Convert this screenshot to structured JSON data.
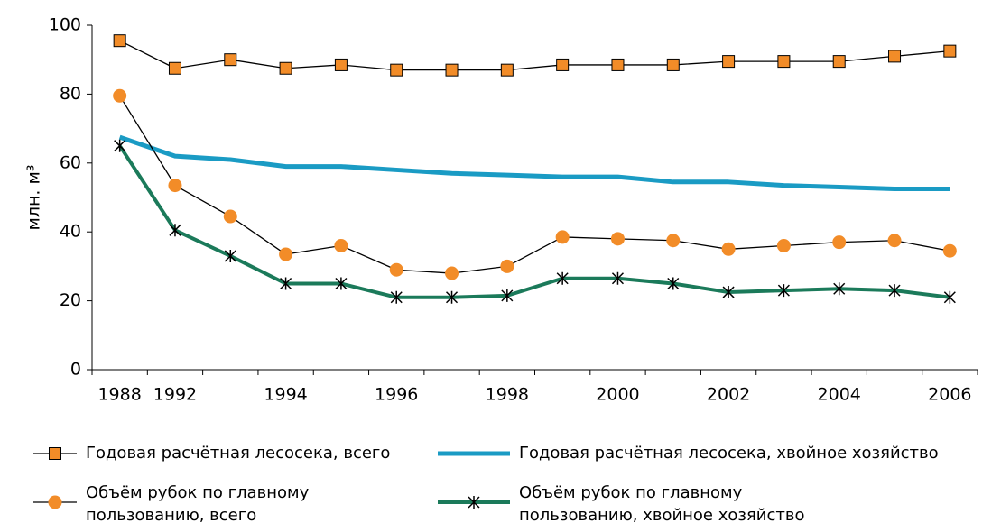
{
  "chart_data": {
    "type": "line",
    "y_label": "млн. м³",
    "categories": [
      "1988",
      "1992",
      null,
      "1994",
      null,
      "1996",
      null,
      "1998",
      null,
      "2000",
      null,
      "2002",
      null,
      "2004",
      null,
      "2006"
    ],
    "ylim": [
      0,
      100
    ],
    "yticks": [
      0,
      20,
      40,
      60,
      80,
      100
    ],
    "series": [
      {
        "name": "Годовая расчётная лесосека, всего",
        "color": "#f28c28",
        "marker": "square",
        "values": [
          95.5,
          87.5,
          90,
          87.5,
          88.5,
          87,
          87,
          87,
          88.5,
          88.5,
          88.5,
          89.5,
          89.5,
          89.5,
          91,
          92.5
        ]
      },
      {
        "name": "Годовая расчётная лесосека, хвойное хозяйство",
        "color": "#1a9bc4",
        "marker": "none",
        "values": [
          67.5,
          62,
          61,
          59,
          59,
          58,
          57,
          56.5,
          56,
          56,
          54.5,
          54.5,
          53.5,
          53,
          52.5,
          52.5
        ]
      },
      {
        "name": "Объём рубок по главному пользованию, всего",
        "color": "#f28c28",
        "marker": "circle",
        "values": [
          79.5,
          53.5,
          44.5,
          33.5,
          36,
          29,
          28,
          30,
          38.5,
          38,
          37.5,
          35,
          36,
          37,
          37.5,
          34.5
        ]
      },
      {
        "name": "Объём рубок по главному пользованию, хвойное хозяйство",
        "color": "#1b7a5a",
        "marker": "star",
        "values": [
          65,
          40.5,
          33,
          25,
          25,
          21,
          21,
          21.5,
          26.5,
          26.5,
          25,
          22.5,
          23,
          23.5,
          23,
          21
        ]
      }
    ]
  }
}
